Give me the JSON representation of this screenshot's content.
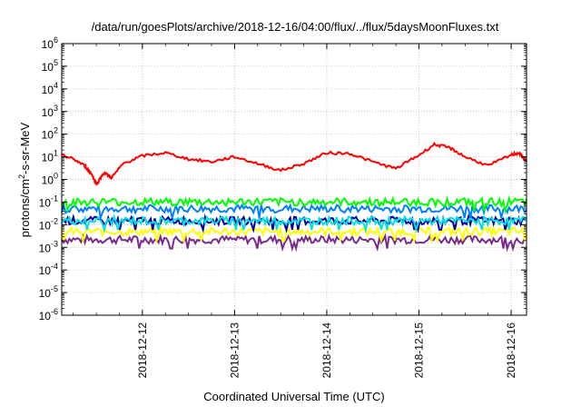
{
  "chart_data": {
    "type": "line",
    "title": "/data/run/goesPlots/archive/2018-12-16/04:00/flux/../flux/5daysMoonFluxes.txt",
    "xlabel": "Coordinated Universal Time (UTC)",
    "ylabel": "protons/cm²-s-sr-MeV",
    "yscale": "log",
    "ylim": [
      1e-06,
      1000000.0
    ],
    "xlim": [
      "2018-12-11T03:00",
      "2018-12-16T04:00"
    ],
    "y_ticks": [
      {
        "base": "10",
        "exp": "-6"
      },
      {
        "base": "10",
        "exp": "-5"
      },
      {
        "base": "10",
        "exp": "-4"
      },
      {
        "base": "10",
        "exp": "-3"
      },
      {
        "base": "10",
        "exp": "-2"
      },
      {
        "base": "10",
        "exp": "-1"
      },
      {
        "base": "10",
        "exp": "0"
      },
      {
        "base": "10",
        "exp": "1"
      },
      {
        "base": "10",
        "exp": "2"
      },
      {
        "base": "10",
        "exp": "3"
      },
      {
        "base": "10",
        "exp": "4"
      },
      {
        "base": "10",
        "exp": "5"
      },
      {
        "base": "10",
        "exp": "6"
      }
    ],
    "x_ticks": [
      "2018-12-12",
      "2018-12-13",
      "2018-12-14",
      "2018-12-15",
      "2018-12-16"
    ],
    "grid": true,
    "legend": "none",
    "series": [
      {
        "color": "#ff0000",
        "points": [
          [
            "2018-12-11T03:00",
            12
          ],
          [
            "2018-12-11T06:00",
            8
          ],
          [
            "2018-12-11T09:00",
            4
          ],
          [
            "2018-12-11T11:00",
            1.5
          ],
          [
            "2018-12-11T12:00",
            0.6
          ],
          [
            "2018-12-11T14:00",
            2
          ],
          [
            "2018-12-11T16:00",
            1.2
          ],
          [
            "2018-12-11T19:00",
            5
          ],
          [
            "2018-12-12T00:00",
            11
          ],
          [
            "2018-12-12T06:00",
            15
          ],
          [
            "2018-12-12T12:00",
            8
          ],
          [
            "2018-12-12T18:00",
            6
          ],
          [
            "2018-12-13T00:00",
            10
          ],
          [
            "2018-12-13T06:00",
            5
          ],
          [
            "2018-12-13T12:00",
            2.5
          ],
          [
            "2018-12-13T18:00",
            5
          ],
          [
            "2018-12-14T00:00",
            15
          ],
          [
            "2018-12-14T06:00",
            14
          ],
          [
            "2018-12-14T12:00",
            6
          ],
          [
            "2018-12-14T18:00",
            3
          ],
          [
            "2018-12-15T00:00",
            12
          ],
          [
            "2018-12-15T04:00",
            35
          ],
          [
            "2018-12-15T08:00",
            25
          ],
          [
            "2018-12-15T12:00",
            10
          ],
          [
            "2018-12-15T18:00",
            4
          ],
          [
            "2018-12-16T00:00",
            12
          ],
          [
            "2018-12-16T02:00",
            15
          ],
          [
            "2018-12-16T04:00",
            6
          ]
        ]
      },
      {
        "color": "#00ff00",
        "level": 0.1
      },
      {
        "color": "#0080ff",
        "level": 0.05
      },
      {
        "color": "#00e0e0",
        "level": 0.015
      },
      {
        "color": "#0000a0",
        "level": 0.015
      },
      {
        "color": "#ffff00",
        "level": 0.005
      },
      {
        "color": "#7a2a8a",
        "level": 0.0022
      }
    ]
  }
}
